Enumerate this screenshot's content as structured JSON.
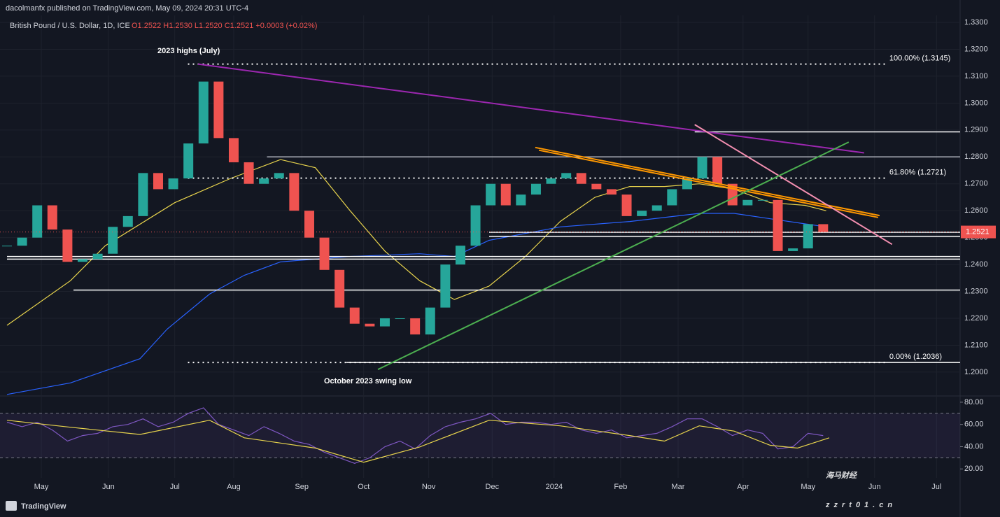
{
  "header": {
    "publisher": "dacolmanfx published on TradingView.com, May 09, 2024 20:31 UTC-4",
    "symbol": "British Pound / U.S. Dollar, 1D, ICE",
    "ohlc": "O1.2522 H1.2530 L1.2520 C1.2521 +0.0003 (+0.02%)"
  },
  "chart_data": {
    "type": "candlestick",
    "annotations": [
      "2023 highs (July)",
      "October 2023 swing low"
    ],
    "xlim": [
      -0.463,
      63.06
    ],
    "xticks": [
      {
        "value": 2.27,
        "label": "May"
      },
      {
        "value": 6.71,
        "label": "Jun"
      },
      {
        "value": 11.1,
        "label": "Jul"
      },
      {
        "value": 15.0,
        "label": "Aug"
      },
      {
        "value": 19.5,
        "label": "Sep"
      },
      {
        "value": 23.6,
        "label": "Oct"
      },
      {
        "value": 27.9,
        "label": "Nov"
      },
      {
        "value": 32.1,
        "label": "Dec"
      },
      {
        "value": 36.2,
        "label": "2024"
      },
      {
        "value": 40.6,
        "label": "Feb"
      },
      {
        "value": 44.4,
        "label": "Mar"
      },
      {
        "value": 48.7,
        "label": "Apr"
      },
      {
        "value": 53.0,
        "label": "May"
      },
      {
        "value": 57.4,
        "label": "Jun"
      },
      {
        "value": 61.5,
        "label": "Jul"
      }
    ],
    "ylim": [
      1.1914,
      1.3326
    ],
    "yticks": [
      {
        "value": 1.2,
        "label": "1.2000"
      },
      {
        "value": 1.21,
        "label": "1.2100"
      },
      {
        "value": 1.22,
        "label": "1.2200"
      },
      {
        "value": 1.23,
        "label": "1.2300"
      },
      {
        "value": 1.24,
        "label": "1.2400"
      },
      {
        "value": 1.25,
        "label": "1.2500"
      },
      {
        "value": 1.26,
        "label": "1.2600"
      },
      {
        "value": 1.27,
        "label": "1.2700"
      },
      {
        "value": 1.28,
        "label": "1.2800"
      },
      {
        "value": 1.29,
        "label": "1.2900"
      },
      {
        "value": 1.3,
        "label": "1.3000"
      },
      {
        "value": 1.31,
        "label": "1.3100"
      },
      {
        "value": 1.32,
        "label": "1.3200"
      },
      {
        "value": 1.33,
        "label": "1.3300"
      }
    ],
    "up_color": "#26a69a",
    "down_color": "#ef5350",
    "closes": [
      1.247,
      1.25,
      1.262,
      1.253,
      1.241,
      1.242,
      1.244,
      1.254,
      1.258,
      1.274,
      1.268,
      1.272,
      1.285,
      1.308,
      1.287,
      1.278,
      1.27,
      1.272,
      1.274,
      1.26,
      1.25,
      1.238,
      1.224,
      1.218,
      1.217,
      1.22,
      1.22,
      1.214,
      1.224,
      1.24,
      1.247,
      1.262,
      1.27,
      1.262,
      1.266,
      1.27,
      1.272,
      1.274,
      1.27,
      1.268,
      1.266,
      1.258,
      1.26,
      1.262,
      1.268,
      1.272,
      1.28,
      1.27,
      1.262,
      1.264,
      1.264,
      1.245,
      1.246,
      1.255,
      1.2521
    ],
    "last_price": 1.2521,
    "moving_averages": [
      {
        "color": "#e8d44d",
        "x": [
          0,
          4.2,
          6.5,
          11.1,
          14.8,
          18.1,
          20.4,
          22.7,
          25.0,
          27.3,
          29.6,
          31.9,
          34.3,
          36.6,
          38.9,
          41.2,
          43.5,
          45.8,
          48.1,
          50.5,
          52.8,
          54.2
        ],
        "values": [
          1.2174,
          1.234,
          1.247,
          1.263,
          1.272,
          1.279,
          1.276,
          1.26,
          1.245,
          1.234,
          1.227,
          1.232,
          1.243,
          1.256,
          1.265,
          1.269,
          1.269,
          1.27,
          1.268,
          1.263,
          1.262,
          1.26
        ]
      },
      {
        "color": "#2962ff",
        "x": [
          0,
          4.2,
          8.8,
          10.6,
          13.4,
          15.7,
          18.1,
          20.4,
          22.7,
          27.3,
          29.6,
          31.9,
          36.6,
          41.2,
          45.8,
          48.1,
          50.5,
          54.2
        ],
        "values": [
          1.1917,
          1.196,
          1.205,
          1.216,
          1.229,
          1.236,
          1.241,
          1.242,
          1.243,
          1.244,
          1.243,
          1.249,
          1.254,
          1.256,
          1.259,
          1.259,
          1.257,
          1.254
        ]
      }
    ],
    "levels": [
      {
        "color": "#ffffff",
        "dotted": true,
        "x": [
          11.97,
          58.1
        ],
        "value": 1.3145,
        "label": "100.00% (1.3145)"
      },
      {
        "color": "#ffffff",
        "dotted": true,
        "x": [
          11.97,
          58.1
        ],
        "value": 1.2721,
        "label": "61.80% (1.2721)"
      },
      {
        "color": "#ffffff",
        "dotted": true,
        "x": [
          11.97,
          58.1
        ],
        "value": 1.2036,
        "label": "0.00% (1.2036)"
      },
      {
        "color": "#ffffff",
        "x": [
          22.45,
          63.06
        ],
        "value": 1.2036
      },
      {
        "color": "#ffffff",
        "x": [
          45.5,
          63.06
        ],
        "value": 1.2893
      },
      {
        "color": "#b2b5be",
        "x": [
          17.2,
          63.06
        ],
        "value": 1.28
      },
      {
        "color": "#ffffff",
        "x": [
          31.9,
          63.06
        ],
        "value": 1.252
      },
      {
        "color": "#ffffff",
        "x": [
          31.9,
          63.06
        ],
        "value": 1.2505
      },
      {
        "color": "#ffffff",
        "x": [
          0,
          63.06
        ],
        "value": 1.243
      },
      {
        "color": "#ffffff",
        "x": [
          0,
          63.06
        ],
        "value": 1.242
      },
      {
        "color": "#ffffff",
        "x": [
          4.4,
          63.06
        ],
        "value": 1.2305
      }
    ],
    "trendlines": [
      {
        "color": "#9c27b0",
        "x": [
          12.64,
          56.71
        ],
        "values": [
          1.3145,
          1.2815
        ]
      },
      {
        "color": "#ff9800",
        "x": [
          34.95,
          57.73
        ],
        "values": [
          1.2835,
          1.2582
        ]
      },
      {
        "color": "#ff9800",
        "x": [
          35.19,
          57.64
        ],
        "values": [
          1.2825,
          1.2575
        ]
      },
      {
        "color": "#f48fb1",
        "x": [
          45.5,
          58.56
        ],
        "values": [
          1.292,
          1.2475
        ]
      },
      {
        "color": "#4caf50",
        "x": [
          24.54,
          55.69
        ],
        "values": [
          1.201,
          1.2855
        ]
      }
    ],
    "rsi": {
      "ylim": [
        12,
        85.6
      ],
      "yticks": [
        {
          "value": 80,
          "label": "80.00"
        },
        {
          "value": 60,
          "label": "60.00"
        },
        {
          "value": 40,
          "label": "40.00"
        },
        {
          "value": 20,
          "label": "20.00"
        }
      ],
      "band": [
        30,
        70
      ],
      "color": "#7e57c2",
      "values": [
        62,
        58,
        62,
        55,
        45,
        50,
        52,
        58,
        60,
        65,
        58,
        62,
        70,
        75,
        60,
        55,
        50,
        58,
        52,
        45,
        42,
        35,
        30,
        25,
        30,
        40,
        45,
        38,
        50,
        58,
        62,
        65,
        70,
        60,
        62,
        62,
        60,
        62,
        55,
        52,
        55,
        48,
        50,
        52,
        58,
        65,
        65,
        58,
        50,
        55,
        52,
        38,
        40,
        52,
        50
      ],
      "ma": {
        "color": "#e8d44d",
        "x": [
          0,
          4.2,
          8.8,
          13.4,
          15.7,
          20.4,
          23.6,
          27.3,
          31.9,
          36.6,
          41.2,
          43.5,
          45.8,
          48.1,
          50.5,
          52.3,
          54.4
        ],
        "values": [
          63.75,
          57.5,
          51,
          63.75,
          48,
          38.75,
          26,
          39.75,
          63.75,
          58.75,
          50,
          45,
          58.75,
          54,
          41.25,
          38.75,
          48
        ]
      }
    }
  },
  "footer": {
    "brand": "TradingView"
  },
  "watermark": {
    "title": "海马财经",
    "url": "zzrt01.cn"
  }
}
